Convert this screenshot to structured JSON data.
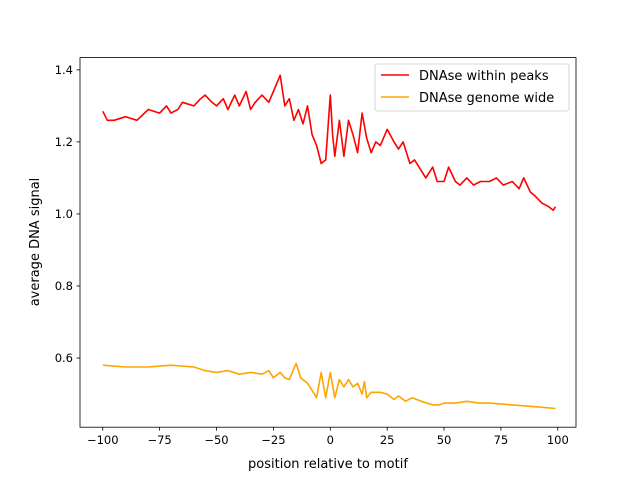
{
  "chart_data": {
    "type": "line",
    "title": "",
    "xlabel": "position relative to motif",
    "ylabel": "average DNA signal",
    "xlim": [
      -110,
      108
    ],
    "ylim": [
      0.408,
      1.434
    ],
    "xticks": [
      -100,
      -75,
      -50,
      -25,
      0,
      25,
      50,
      75,
      100
    ],
    "xtick_labels": [
      "−100",
      "−75",
      "−50",
      "−25",
      "0",
      "25",
      "50",
      "75",
      "100"
    ],
    "yticks": [
      0.6,
      0.8,
      1.0,
      1.2,
      1.4
    ],
    "ytick_labels": [
      "0.6",
      "0.8",
      "1.0",
      "1.2",
      "1.4"
    ],
    "grid": false,
    "legend_position": "top-right",
    "series": [
      {
        "name": "DNAse within peaks",
        "color": "#ff0000",
        "x": [
          -100,
          -98,
          -95,
          -90,
          -85,
          -80,
          -75,
          -72,
          -70,
          -67,
          -65,
          -60,
          -57,
          -55,
          -52,
          -50,
          -47,
          -45,
          -42,
          -40,
          -37,
          -35,
          -33,
          -30,
          -27,
          -25,
          -22,
          -20,
          -18,
          -16,
          -14,
          -12,
          -10,
          -8,
          -6,
          -4,
          -2,
          0,
          1,
          2,
          4,
          6,
          8,
          10,
          12,
          14,
          16,
          18,
          20,
          22,
          25,
          28,
          30,
          32,
          35,
          37,
          40,
          42,
          45,
          47,
          50,
          52,
          55,
          57,
          60,
          63,
          66,
          70,
          73,
          76,
          80,
          83,
          85,
          88,
          90,
          93,
          96,
          98,
          99
        ],
        "y": [
          1.285,
          1.26,
          1.26,
          1.27,
          1.26,
          1.29,
          1.28,
          1.3,
          1.28,
          1.29,
          1.31,
          1.3,
          1.32,
          1.33,
          1.31,
          1.3,
          1.32,
          1.29,
          1.33,
          1.3,
          1.34,
          1.29,
          1.31,
          1.33,
          1.31,
          1.34,
          1.385,
          1.3,
          1.32,
          1.26,
          1.29,
          1.25,
          1.3,
          1.22,
          1.19,
          1.14,
          1.15,
          1.33,
          1.22,
          1.16,
          1.26,
          1.16,
          1.26,
          1.22,
          1.17,
          1.28,
          1.21,
          1.17,
          1.2,
          1.19,
          1.235,
          1.2,
          1.18,
          1.2,
          1.14,
          1.15,
          1.12,
          1.1,
          1.13,
          1.09,
          1.09,
          1.13,
          1.09,
          1.08,
          1.1,
          1.08,
          1.09,
          1.09,
          1.1,
          1.08,
          1.09,
          1.07,
          1.1,
          1.06,
          1.05,
          1.03,
          1.02,
          1.01,
          1.02
        ]
      },
      {
        "name": "DNAse genome wide",
        "color": "#ffa500",
        "x": [
          -100,
          -90,
          -80,
          -70,
          -60,
          -55,
          -50,
          -45,
          -40,
          -35,
          -30,
          -27,
          -25,
          -22,
          -20,
          -18,
          -15,
          -13,
          -10,
          -8,
          -6,
          -4,
          -2,
          0,
          2,
          4,
          6,
          8,
          10,
          12,
          14,
          15,
          16,
          18,
          22,
          25,
          28,
          30,
          33,
          36,
          40,
          45,
          48,
          50,
          55,
          60,
          65,
          70,
          80,
          90,
          99
        ],
        "y": [
          0.58,
          0.575,
          0.575,
          0.58,
          0.575,
          0.565,
          0.56,
          0.565,
          0.555,
          0.56,
          0.555,
          0.565,
          0.545,
          0.56,
          0.545,
          0.54,
          0.585,
          0.545,
          0.53,
          0.51,
          0.49,
          0.56,
          0.49,
          0.56,
          0.49,
          0.54,
          0.52,
          0.54,
          0.52,
          0.53,
          0.5,
          0.535,
          0.49,
          0.505,
          0.505,
          0.5,
          0.485,
          0.495,
          0.48,
          0.49,
          0.48,
          0.47,
          0.47,
          0.475,
          0.475,
          0.48,
          0.475,
          0.475,
          0.47,
          0.465,
          0.46
        ]
      }
    ]
  }
}
